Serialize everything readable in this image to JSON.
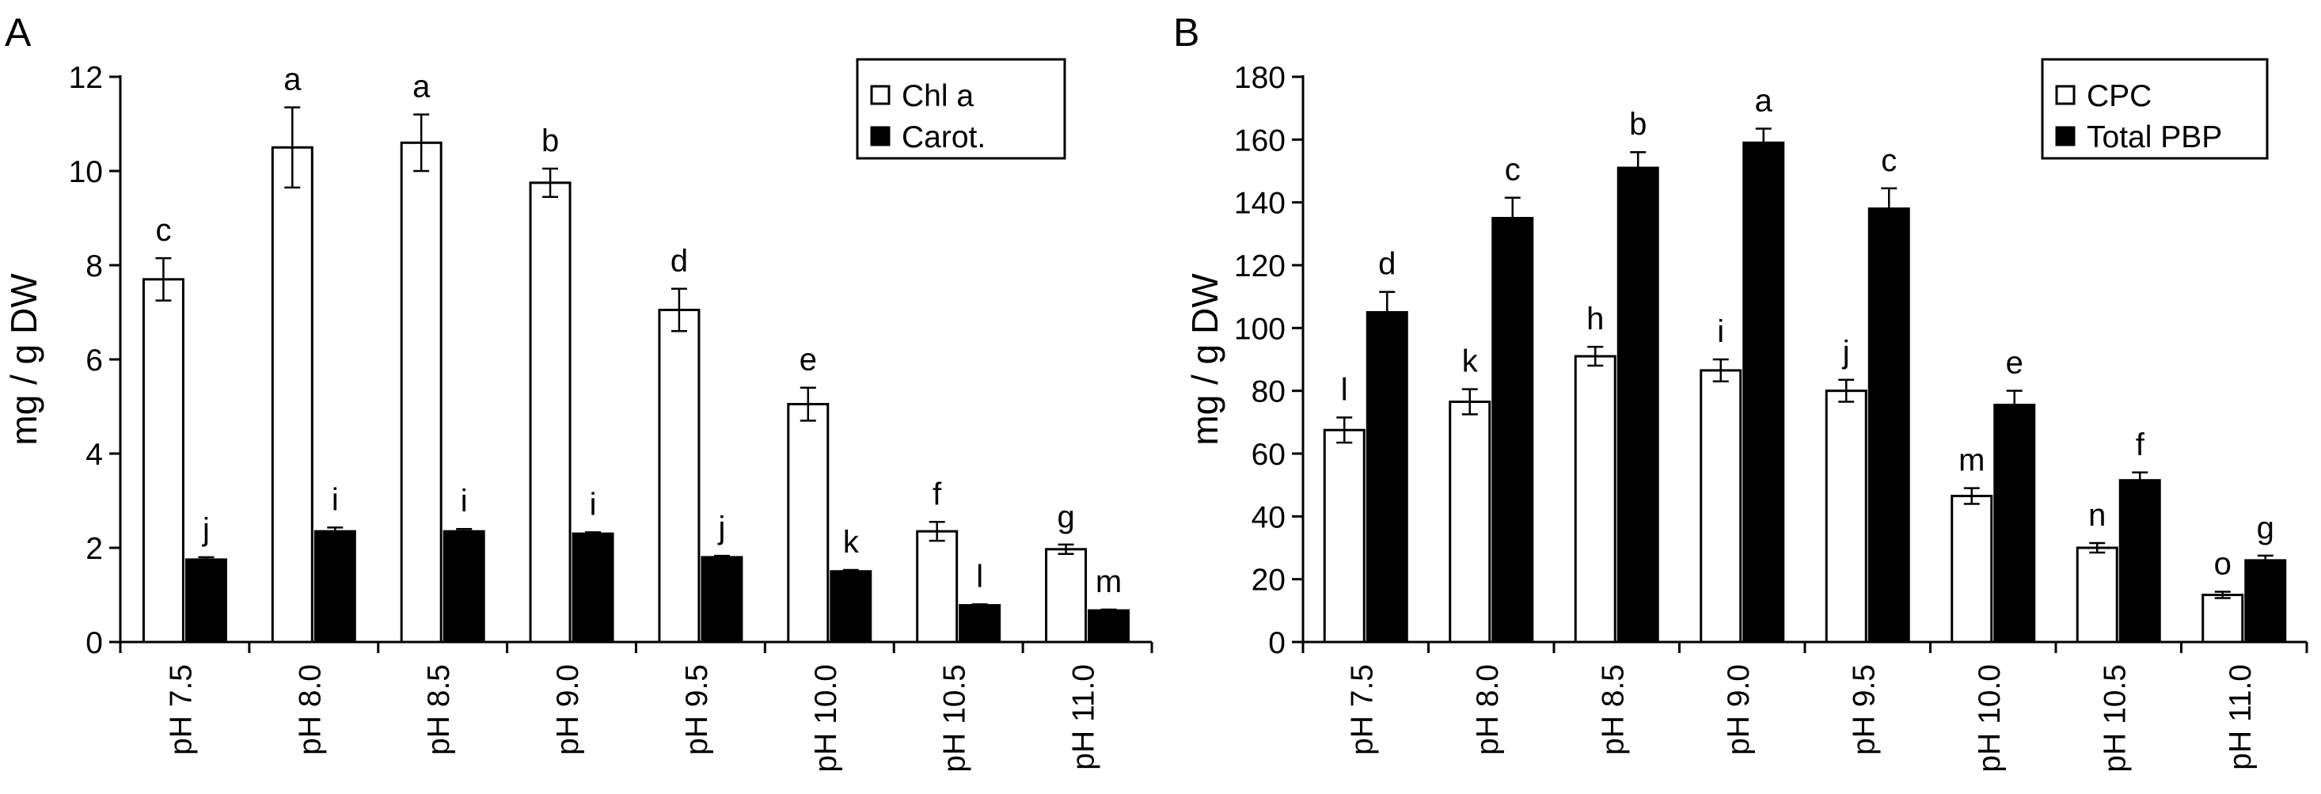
{
  "chart_data": [
    {
      "panel_label": "A",
      "type": "bar",
      "ylabel": "mg / g DW",
      "ylim": [
        0,
        12
      ],
      "yticks": [
        0,
        2,
        4,
        6,
        8,
        10,
        12
      ],
      "categories": [
        "pH 7.5",
        "pH 8.0",
        "pH 8.5",
        "pH 9.0",
        "pH 9.5",
        "pH 10.0",
        "pH 10.5",
        "pH 11.0"
      ],
      "series": [
        {
          "name": "Chl a",
          "fill": "#ffffff",
          "values": [
            7.7,
            10.5,
            10.6,
            9.75,
            7.05,
            5.05,
            2.35,
            1.97
          ],
          "errors": [
            0.45,
            0.85,
            0.6,
            0.3,
            0.45,
            0.35,
            0.2,
            0.1
          ],
          "letters": [
            "c",
            "a",
            "a",
            "b",
            "d",
            "e",
            "f",
            "g"
          ]
        },
        {
          "name": "Carot.",
          "fill": "#000000",
          "values": [
            1.75,
            2.35,
            2.35,
            2.3,
            1.8,
            1.5,
            0.78,
            0.67
          ],
          "errors": [
            0.05,
            0.08,
            0.05,
            0.03,
            0.03,
            0.03,
            0.02,
            0.02
          ],
          "letters": [
            "j",
            "i",
            "i",
            "i",
            "j",
            "k",
            "l",
            "m"
          ]
        }
      ],
      "legend_position": "top-right",
      "grid": false
    },
    {
      "panel_label": "B",
      "type": "bar",
      "ylabel": "mg / g DW",
      "ylim": [
        0,
        180
      ],
      "yticks": [
        0,
        20,
        40,
        60,
        80,
        100,
        120,
        140,
        160,
        180
      ],
      "categories": [
        "pH 7.5",
        "pH 8.0",
        "pH 8.5",
        "pH 9.0",
        "pH 9.5",
        "pH 10.0",
        "pH 10.5",
        "pH 11.0"
      ],
      "series": [
        {
          "name": "CPC",
          "fill": "#ffffff",
          "values": [
            67.5,
            76.5,
            91,
            86.5,
            80,
            46.5,
            30,
            15
          ],
          "errors": [
            4,
            4,
            3,
            3.5,
            3.5,
            2.5,
            1.5,
            1
          ],
          "letters": [
            "l",
            "k",
            "h",
            "i",
            "j",
            "m",
            "n",
            "o"
          ]
        },
        {
          "name": "Total PBP",
          "fill": "#000000",
          "values": [
            105,
            135,
            151,
            159,
            138,
            75.5,
            51.5,
            26
          ],
          "errors": [
            6.5,
            6.5,
            5,
            4.5,
            6.5,
            4.5,
            2.5,
            1.5
          ],
          "letters": [
            "d",
            "c",
            "b",
            "a",
            "c",
            "e",
            "f",
            "g"
          ]
        }
      ],
      "legend_position": "top-right",
      "grid": false
    }
  ]
}
